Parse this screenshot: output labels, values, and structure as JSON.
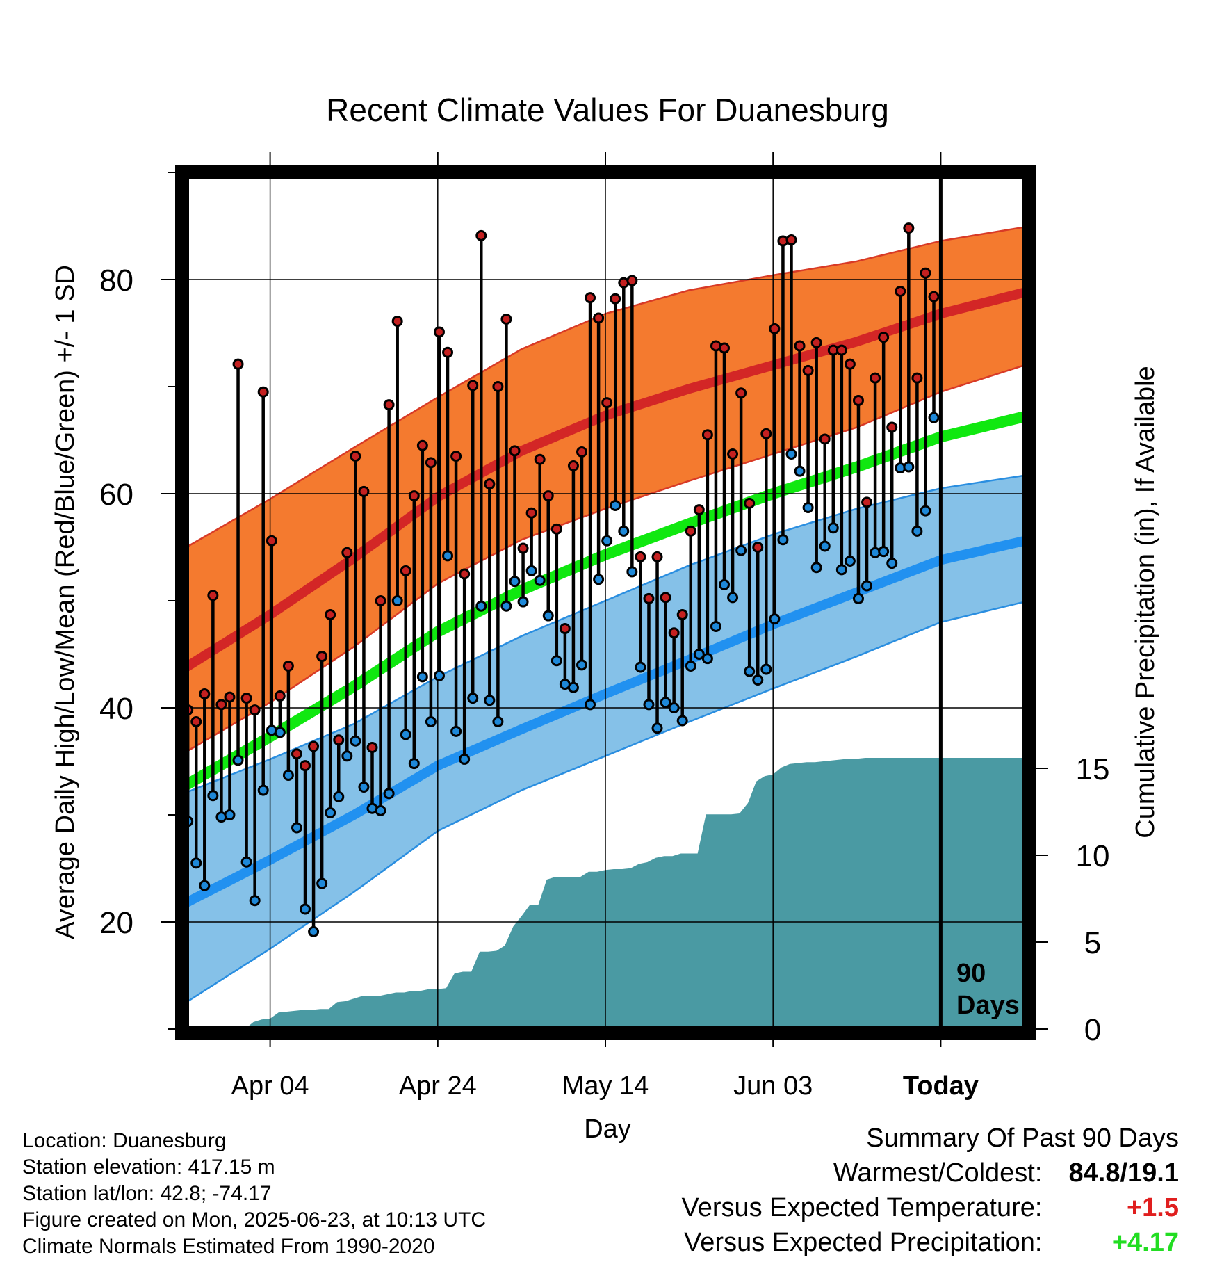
{
  "chart_data": {
    "type": "line",
    "title": "Recent Climate Values For Duanesburg",
    "xlabel": "Day",
    "ylabel": "Average Daily High/Low/Mean (Red/Blue/Green) +/- 1 SD",
    "y2label": "Cumulative Precipitation (in), If Available",
    "x_tick_labels": [
      "Apr 04",
      "Apr 24",
      "May 14",
      "Jun 03",
      "Today"
    ],
    "x_ticks_day": [
      10,
      30,
      50,
      70,
      90
    ],
    "xlim_day": [
      0,
      100
    ],
    "ylim": [
      10,
      90
    ],
    "y_ticks": [
      20,
      40,
      60,
      80
    ],
    "y2lim": [
      0,
      16.5
    ],
    "y2_ticks": [
      0,
      5,
      10,
      15
    ],
    "today_marker": {
      "label_line1": "90",
      "label_line2": "Days",
      "day": 90
    },
    "colors": {
      "high_band": "#f47a2f",
      "high_mean": "#d32626",
      "low_band": "#85c1e8",
      "low_mean": "#2191f0",
      "mean_normal": "#10e810",
      "precip": "#4a9aa3",
      "high_dot": "#c42020",
      "low_dot": "#1e88d8"
    },
    "normal_high": [
      {
        "day": 0,
        "mean": 43.8,
        "upper": 55.0,
        "lower": 35.9
      },
      {
        "day": 10,
        "mean": 48.7,
        "upper": 59.5,
        "lower": 40.5
      },
      {
        "day": 20,
        "mean": 54.0,
        "upper": 64.3,
        "lower": 45.7
      },
      {
        "day": 30,
        "mean": 59.7,
        "upper": 69.0,
        "lower": 51.6
      },
      {
        "day": 40,
        "mean": 64.0,
        "upper": 73.5,
        "lower": 55.7
      },
      {
        "day": 50,
        "mean": 67.3,
        "upper": 76.8,
        "lower": 58.6
      },
      {
        "day": 60,
        "mean": 69.8,
        "upper": 79.0,
        "lower": 61.2
      },
      {
        "day": 70,
        "mean": 72.0,
        "upper": 80.4,
        "lower": 63.7
      },
      {
        "day": 80,
        "mean": 74.2,
        "upper": 81.7,
        "lower": 66.2
      },
      {
        "day": 90,
        "mean": 76.8,
        "upper": 83.6,
        "lower": 69.5
      },
      {
        "day": 100,
        "mean": 78.8,
        "upper": 84.9,
        "lower": 72.0
      }
    ],
    "normal_low": [
      {
        "day": 0,
        "mean": 21.8,
        "upper": 32.1,
        "lower": 12.5
      },
      {
        "day": 10,
        "mean": 25.8,
        "upper": 35.2,
        "lower": 17.5
      },
      {
        "day": 20,
        "mean": 30.0,
        "upper": 38.5,
        "lower": 22.8
      },
      {
        "day": 30,
        "mean": 34.6,
        "upper": 42.9,
        "lower": 28.5
      },
      {
        "day": 40,
        "mean": 38.0,
        "upper": 46.7,
        "lower": 32.3
      },
      {
        "day": 50,
        "mean": 41.3,
        "upper": 50.0,
        "lower": 35.5
      },
      {
        "day": 60,
        "mean": 44.5,
        "upper": 53.3,
        "lower": 38.7
      },
      {
        "day": 70,
        "mean": 47.8,
        "upper": 56.2,
        "lower": 41.8
      },
      {
        "day": 80,
        "mean": 50.8,
        "upper": 58.6,
        "lower": 44.8
      },
      {
        "day": 90,
        "mean": 53.8,
        "upper": 60.5,
        "lower": 48.0
      },
      {
        "day": 100,
        "mean": 55.6,
        "upper": 61.7,
        "lower": 49.9
      }
    ],
    "normal_mean": [
      {
        "day": 0,
        "value": 32.8
      },
      {
        "day": 10,
        "value": 37.3
      },
      {
        "day": 20,
        "value": 42.0
      },
      {
        "day": 30,
        "value": 47.1
      },
      {
        "day": 40,
        "value": 51.0
      },
      {
        "day": 50,
        "value": 54.3
      },
      {
        "day": 60,
        "value": 57.2
      },
      {
        "day": 70,
        "value": 60.0
      },
      {
        "day": 80,
        "value": 62.5
      },
      {
        "day": 90,
        "value": 65.3
      },
      {
        "day": 100,
        "value": 67.2
      }
    ],
    "series": [
      {
        "name": "High",
        "x": [
          0,
          1,
          2,
          3,
          4,
          5,
          6,
          7,
          8,
          9,
          10,
          11,
          12,
          13,
          14,
          15,
          16,
          17,
          18,
          19,
          20,
          21,
          22,
          23,
          24,
          25,
          26,
          27,
          28,
          29,
          30,
          31,
          32,
          33,
          34,
          35,
          36,
          37,
          38,
          39,
          40,
          41,
          42,
          43,
          44,
          45,
          46,
          47,
          48,
          49,
          50,
          51,
          52,
          53,
          54,
          55,
          56,
          57,
          58,
          59,
          60,
          61,
          62,
          63,
          64,
          65,
          66,
          67,
          68,
          69,
          70,
          71,
          72,
          73,
          74,
          75,
          76,
          77,
          78,
          79,
          80,
          81,
          82,
          83,
          84,
          85,
          86,
          87,
          88,
          89
        ],
        "values": [
          39.8,
          38.7,
          41.3,
          50.5,
          40.3,
          41.0,
          72.1,
          40.9,
          39.8,
          69.5,
          55.6,
          41.1,
          43.9,
          35.7,
          34.6,
          36.4,
          44.8,
          48.7,
          37.0,
          54.5,
          63.5,
          60.2,
          36.3,
          50.0,
          68.3,
          76.1,
          52.8,
          59.8,
          64.5,
          62.9,
          75.1,
          73.2,
          63.5,
          52.5,
          70.1,
          84.1,
          60.9,
          70.0,
          76.3,
          64.0,
          54.9,
          58.2,
          63.2,
          59.8,
          56.7,
          47.4,
          62.6,
          63.9,
          78.3,
          76.4,
          68.5,
          78.2,
          79.7,
          79.9,
          54.1,
          50.2,
          54.1,
          50.3,
          47.0,
          48.7,
          56.5,
          58.5,
          65.5,
          73.8,
          73.6,
          63.7,
          69.4,
          59.1,
          55.0,
          65.6,
          75.4,
          83.6,
          83.7,
          73.8,
          71.5,
          74.1,
          65.1,
          73.4,
          73.4,
          72.1,
          68.7,
          59.2,
          70.8,
          74.6,
          66.2,
          78.9,
          84.8,
          70.8,
          80.6,
          78.4
        ]
      },
      {
        "name": "Low",
        "x": [
          0,
          1,
          2,
          3,
          4,
          5,
          6,
          7,
          8,
          9,
          10,
          11,
          12,
          13,
          14,
          15,
          16,
          17,
          18,
          19,
          20,
          21,
          22,
          23,
          24,
          25,
          26,
          27,
          28,
          29,
          30,
          31,
          32,
          33,
          34,
          35,
          36,
          37,
          38,
          39,
          40,
          41,
          42,
          43,
          44,
          45,
          46,
          47,
          48,
          49,
          50,
          51,
          52,
          53,
          54,
          55,
          56,
          57,
          58,
          59,
          60,
          61,
          62,
          63,
          64,
          65,
          66,
          67,
          68,
          69,
          70,
          71,
          72,
          73,
          74,
          75,
          76,
          77,
          78,
          79,
          80,
          81,
          82,
          83,
          84,
          85,
          86,
          87,
          88,
          89
        ],
        "values": [
          29.4,
          25.5,
          23.4,
          31.8,
          29.8,
          30.0,
          35.1,
          25.6,
          22.0,
          32.3,
          37.9,
          37.7,
          33.7,
          28.8,
          21.2,
          19.1,
          23.6,
          30.2,
          31.7,
          35.5,
          36.9,
          32.6,
          30.6,
          30.4,
          32.0,
          50.0,
          37.5,
          34.8,
          42.9,
          38.7,
          43.0,
          54.2,
          37.8,
          35.2,
          40.9,
          49.5,
          40.7,
          38.7,
          49.5,
          51.8,
          49.9,
          52.8,
          51.9,
          48.6,
          44.4,
          42.2,
          41.9,
          44.0,
          40.3,
          52.0,
          55.6,
          58.9,
          56.5,
          52.7,
          43.8,
          40.3,
          38.1,
          40.5,
          40.0,
          38.8,
          43.9,
          45.0,
          44.6,
          47.6,
          51.5,
          50.3,
          54.7,
          43.4,
          42.6,
          43.6,
          48.3,
          55.7,
          63.7,
          62.1,
          58.7,
          53.1,
          55.1,
          56.8,
          52.9,
          53.7,
          50.2,
          51.4,
          54.5,
          54.6,
          53.5,
          62.4,
          62.5,
          56.5,
          58.4,
          67.1
        ]
      },
      {
        "name": "Cumulative Precipitation",
        "x": [
          0,
          7,
          8,
          9,
          10,
          11,
          12,
          13,
          14,
          15,
          16,
          17,
          18,
          19,
          20,
          21,
          22,
          23,
          24,
          25,
          26,
          27,
          28,
          29,
          30,
          31,
          32,
          33,
          34,
          35,
          36,
          37,
          38,
          39,
          40,
          41,
          42,
          43,
          44,
          45,
          46,
          47,
          48,
          49,
          50,
          51,
          52,
          53,
          54,
          55,
          56,
          57,
          58,
          59,
          60,
          61,
          62,
          63,
          64,
          65,
          66,
          67,
          68,
          69,
          70,
          71,
          72,
          73,
          74,
          75,
          76,
          77,
          78,
          79,
          80,
          81,
          82,
          83,
          84,
          85,
          86,
          87,
          88,
          89,
          100
        ],
        "values": [
          0,
          0,
          0.4,
          0.55,
          0.6,
          0.95,
          1.0,
          1.05,
          1.1,
          1.1,
          1.15,
          1.15,
          1.55,
          1.6,
          1.75,
          1.9,
          1.9,
          1.9,
          2.0,
          2.1,
          2.1,
          2.2,
          2.2,
          2.3,
          2.3,
          2.35,
          3.2,
          3.3,
          3.3,
          4.45,
          4.45,
          4.5,
          4.8,
          5.9,
          6.5,
          7.15,
          7.15,
          8.6,
          8.75,
          8.75,
          8.75,
          8.75,
          9.05,
          9.05,
          9.15,
          9.2,
          9.2,
          9.25,
          9.5,
          9.6,
          9.85,
          9.95,
          9.95,
          10.1,
          10.1,
          10.1,
          12.35,
          12.35,
          12.35,
          12.35,
          12.4,
          13.0,
          14.25,
          14.55,
          14.65,
          15.05,
          15.25,
          15.3,
          15.35,
          15.35,
          15.4,
          15.45,
          15.5,
          15.55,
          15.55,
          15.6,
          15.6,
          15.6,
          15.6,
          15.6,
          15.6,
          15.6,
          15.6,
          15.6,
          15.6
        ]
      }
    ]
  },
  "info": {
    "location": "Location: Duanesburg",
    "elevation": "Station elevation: 417.15 m",
    "latlon": "Station lat/lon: 42.8; -74.17",
    "created": "Figure created on Mon, 2025-06-23, at 10:13 UTC",
    "normals": "Climate Normals Estimated From 1990-2020"
  },
  "summary": {
    "title": "Summary Of Past 90 Days",
    "warmest_label": "Warmest/Coldest:",
    "warmest_value": "84.8/19.1",
    "temp_label": "Versus Expected Temperature:",
    "temp_value": "+1.5",
    "temp_color": "#e01e1e",
    "precip_label": "Versus Expected Precipitation:",
    "precip_value": "+4.17",
    "precip_color": "#22dd22"
  }
}
